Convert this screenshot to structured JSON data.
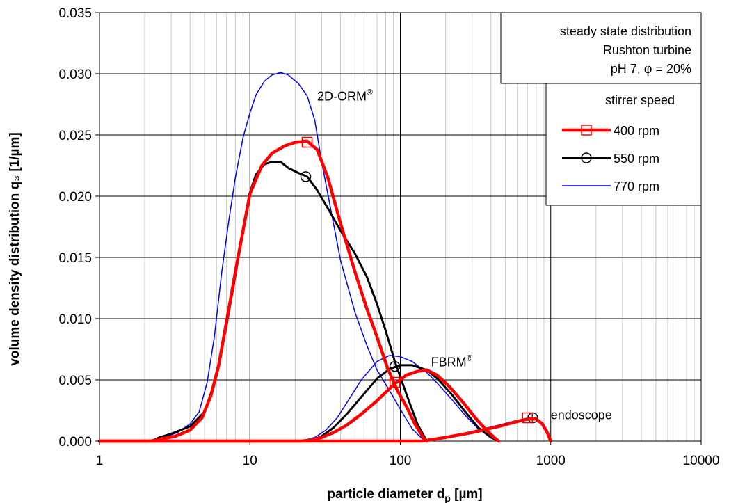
{
  "chart_data": {
    "type": "line",
    "xlabel": "particle diameter d",
    "xlabel_sub": "p",
    "xlabel_unit": " [µm]",
    "ylabel": "volume density distribution q₃ [1/µm]",
    "x_scale": "log",
    "xlim": [
      1,
      10000
    ],
    "ylim": [
      0,
      0.035
    ],
    "x_ticks": [
      "1",
      "10",
      "100",
      "1000",
      "10000"
    ],
    "y_ticks": [
      "0.000",
      "0.005",
      "0.010",
      "0.015",
      "0.020",
      "0.025",
      "0.030",
      "0.035"
    ],
    "grid": true,
    "info_box": [
      "steady state distribution",
      "Rushton turbine",
      "pH 7, φ = 20%"
    ],
    "legend_title": "stirrer speed",
    "legend_placement": "top-right",
    "annotations": [
      {
        "text": "2D-ORM",
        "sup": "®",
        "x": 28,
        "y": 0.0278
      },
      {
        "text": "FBRM",
        "sup": "®",
        "x": 160,
        "y": 0.0061
      },
      {
        "text": "endoscope",
        "sup": "",
        "x": 1000,
        "y": 0.0018
      }
    ],
    "series": [
      {
        "name": "400 rpm",
        "color": "#ff0000",
        "marker": "square",
        "markers": [
          [
            24,
            0.0244
          ],
          [
            92,
            0.0048
          ],
          [
            700,
            0.0019
          ]
        ],
        "segments": [
          [
            [
              1,
              0.0
            ],
            [
              2.2,
              0.0
            ],
            [
              2.6,
              0.0002
            ],
            [
              3.2,
              0.0004
            ],
            [
              4.0,
              0.0009
            ],
            [
              4.8,
              0.0019
            ],
            [
              5.5,
              0.0037
            ],
            [
              6.2,
              0.0062
            ],
            [
              7.0,
              0.0098
            ],
            [
              8.0,
              0.0138
            ],
            [
              9.0,
              0.0172
            ],
            [
              10.0,
              0.0202
            ],
            [
              12.0,
              0.0225
            ],
            [
              14.0,
              0.0235
            ],
            [
              17.0,
              0.0241
            ],
            [
              20.0,
              0.0244
            ],
            [
              24.0,
              0.0245
            ],
            [
              28.0,
              0.0238
            ],
            [
              33.0,
              0.0215
            ],
            [
              40.0,
              0.0178
            ],
            [
              50.0,
              0.0138
            ],
            [
              60.0,
              0.0108
            ],
            [
              70.0,
              0.0085
            ],
            [
              82.0,
              0.006
            ],
            [
              95.0,
              0.0042
            ],
            [
              110.0,
              0.0028
            ],
            [
              125.0,
              0.0014
            ],
            [
              142.0,
              0.0003
            ],
            [
              150.0,
              0.0
            ]
          ],
          [
            [
              1,
              0.0
            ],
            [
              22.0,
              0.0
            ],
            [
              26.0,
              0.0001
            ],
            [
              30.0,
              0.0003
            ],
            [
              36.0,
              0.0007
            ],
            [
              44.0,
              0.0013
            ],
            [
              55.0,
              0.0022
            ],
            [
              70.0,
              0.0033
            ],
            [
              92.0,
              0.0047
            ],
            [
              110.0,
              0.0054
            ],
            [
              130.0,
              0.0057
            ],
            [
              150.0,
              0.0058
            ],
            [
              175.0,
              0.0054
            ],
            [
              210.0,
              0.0045
            ],
            [
              260.0,
              0.0032
            ],
            [
              320.0,
              0.0018
            ],
            [
              380.0,
              0.0008
            ],
            [
              420.0,
              0.0003
            ],
            [
              450.0,
              0.0
            ]
          ],
          [
            [
              1,
              0.0
            ],
            [
              140.0,
              0.0
            ],
            [
              200.0,
              0.0003
            ],
            [
              300.0,
              0.0007
            ],
            [
              450.0,
              0.0012
            ],
            [
              600.0,
              0.0016
            ],
            [
              700.0,
              0.0018
            ],
            [
              800.0,
              0.0018
            ],
            [
              880.0,
              0.0014
            ],
            [
              940.0,
              0.0008
            ],
            [
              1000.0,
              0.0
            ]
          ]
        ]
      },
      {
        "name": "550 rpm",
        "color": "#000000",
        "marker": "circle",
        "markers": [
          [
            23.5,
            0.0216
          ],
          [
            92,
            0.0061
          ],
          [
            760,
            0.0019
          ]
        ],
        "segments": [
          [
            [
              1,
              0.0
            ],
            [
              2.2,
              0.0
            ],
            [
              2.5,
              0.0003
            ],
            [
              3.0,
              0.0006
            ],
            [
              4.0,
              0.0012
            ],
            [
              5.0,
              0.0024
            ],
            [
              6.0,
              0.0053
            ],
            [
              7.0,
              0.0095
            ],
            [
              8.0,
              0.0135
            ],
            [
              9.0,
              0.0173
            ],
            [
              10.0,
              0.0203
            ],
            [
              11.0,
              0.0218
            ],
            [
              12.5,
              0.0226
            ],
            [
              14.0,
              0.0228
            ],
            [
              16.0,
              0.0228
            ],
            [
              18.0,
              0.0223
            ],
            [
              21.0,
              0.0219
            ],
            [
              24.0,
              0.0216
            ],
            [
              28.0,
              0.0205
            ],
            [
              33.0,
              0.019
            ],
            [
              40.0,
              0.0172
            ],
            [
              50.0,
              0.0153
            ],
            [
              60.0,
              0.0134
            ],
            [
              70.0,
              0.0112
            ],
            [
              80.0,
              0.009
            ],
            [
              92.0,
              0.0065
            ],
            [
              110.0,
              0.0038
            ],
            [
              130.0,
              0.0014
            ],
            [
              150.0,
              0.0
            ]
          ],
          [
            [
              1,
              0.0
            ],
            [
              22.0,
              0.0
            ],
            [
              26.0,
              0.0001
            ],
            [
              30.0,
              0.0004
            ],
            [
              36.0,
              0.0011
            ],
            [
              44.0,
              0.0022
            ],
            [
              55.0,
              0.0036
            ],
            [
              70.0,
              0.0051
            ],
            [
              85.0,
              0.0059
            ],
            [
              100.0,
              0.0062
            ],
            [
              120.0,
              0.0062
            ],
            [
              150.0,
              0.0058
            ],
            [
              180.0,
              0.005
            ],
            [
              220.0,
              0.0038
            ],
            [
              270.0,
              0.0024
            ],
            [
              330.0,
              0.0011
            ],
            [
              400.0,
              0.0003
            ],
            [
              450.0,
              0.0
            ]
          ],
          [
            [
              1,
              0.0
            ],
            [
              140.0,
              0.0
            ],
            [
              200.0,
              0.0003
            ],
            [
              300.0,
              0.0007
            ],
            [
              450.0,
              0.0012
            ],
            [
              600.0,
              0.0016
            ],
            [
              750.0,
              0.0019
            ],
            [
              830.0,
              0.0017
            ],
            [
              900.0,
              0.0012
            ],
            [
              960.0,
              0.0005
            ],
            [
              1000.0,
              0.0
            ]
          ]
        ]
      },
      {
        "name": "770 rpm",
        "color": "#0000ff",
        "marker": "none",
        "markers": [],
        "segments": [
          [
            [
              1,
              0.0
            ],
            [
              2.2,
              0.0
            ],
            [
              2.7,
              0.0003
            ],
            [
              3.3,
              0.0007
            ],
            [
              4.0,
              0.0014
            ],
            [
              4.6,
              0.0024
            ],
            [
              5.2,
              0.0048
            ],
            [
              5.8,
              0.0085
            ],
            [
              6.5,
              0.0138
            ],
            [
              7.2,
              0.0178
            ],
            [
              8.0,
              0.0215
            ],
            [
              9.0,
              0.0248
            ],
            [
              10.0,
              0.0268
            ],
            [
              11.0,
              0.0283
            ],
            [
              12.5,
              0.0294
            ],
            [
              14.0,
              0.0299
            ],
            [
              16.0,
              0.0301
            ],
            [
              18.0,
              0.0299
            ],
            [
              21.0,
              0.0292
            ],
            [
              24.0,
              0.0282
            ],
            [
              27.0,
              0.0262
            ],
            [
              30.0,
              0.0228
            ],
            [
              35.0,
              0.0185
            ],
            [
              40.0,
              0.0148
            ],
            [
              50.0,
              0.0105
            ],
            [
              60.0,
              0.0078
            ],
            [
              70.0,
              0.0058
            ],
            [
              85.0,
              0.0041
            ],
            [
              100.0,
              0.0026
            ],
            [
              120.0,
              0.001
            ],
            [
              140.0,
              0.0002
            ],
            [
              150.0,
              0.0
            ]
          ],
          [
            [
              1,
              0.0
            ],
            [
              22.0,
              0.0
            ],
            [
              27.0,
              0.0003
            ],
            [
              32.0,
              0.0009
            ],
            [
              38.0,
              0.0019
            ],
            [
              45.0,
              0.0033
            ],
            [
              55.0,
              0.005
            ],
            [
              70.0,
              0.0065
            ],
            [
              85.0,
              0.007
            ],
            [
              100.0,
              0.0069
            ],
            [
              120.0,
              0.0065
            ],
            [
              150.0,
              0.0056
            ],
            [
              180.0,
              0.0046
            ],
            [
              220.0,
              0.0034
            ],
            [
              270.0,
              0.0021
            ],
            [
              330.0,
              0.001
            ],
            [
              400.0,
              0.0003
            ],
            [
              450.0,
              0.0
            ]
          ],
          [
            [
              1,
              0.0
            ],
            [
              140.0,
              0.0
            ],
            [
              200.0,
              0.0003
            ],
            [
              300.0,
              0.0008
            ],
            [
              450.0,
              0.0013
            ],
            [
              600.0,
              0.0017
            ],
            [
              720.0,
              0.0019
            ],
            [
              800.0,
              0.0018
            ],
            [
              880.0,
              0.0013
            ],
            [
              950.0,
              0.0006
            ],
            [
              1000.0,
              0.0
            ]
          ]
        ]
      }
    ]
  }
}
